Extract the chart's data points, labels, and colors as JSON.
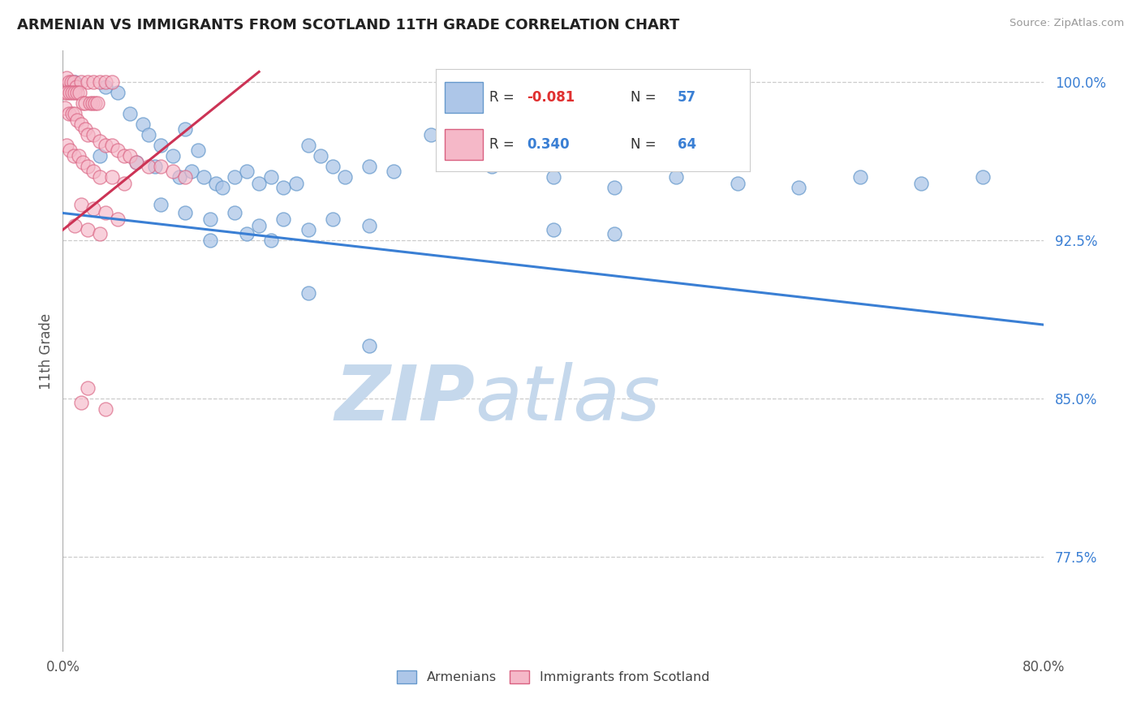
{
  "title": "ARMENIAN VS IMMIGRANTS FROM SCOTLAND 11TH GRADE CORRELATION CHART",
  "source": "Source: ZipAtlas.com",
  "ylabel_label": "11th Grade",
  "legend_blue_r_label": "R = ",
  "legend_blue_r_val": "-0.081",
  "legend_blue_n_label": "N = ",
  "legend_blue_n_val": "57",
  "legend_pink_r_label": "R = ",
  "legend_pink_r_val": "0.340",
  "legend_pink_n_label": "N = ",
  "legend_pink_n_val": "64",
  "legend_label_blue": "Armenians",
  "legend_label_pink": "Immigrants from Scotland",
  "blue_color": "#adc6e8",
  "blue_edge_color": "#6699cc",
  "pink_color": "#f5b8c8",
  "pink_edge_color": "#d96080",
  "trendline_blue_color": "#3a7fd4",
  "trendline_pink_color": "#cc3355",
  "watermark_zip_color": "#c5d8ec",
  "watermark_atlas_color": "#c5d8ec",
  "background_color": "#ffffff",
  "xmin": 0.0,
  "xmax": 80.0,
  "ymin": 73.0,
  "ymax": 101.5,
  "yticks": [
    77.5,
    85.0,
    92.5,
    100.0
  ],
  "ytick_labels": [
    "77.5%",
    "85.0%",
    "92.5%",
    "100.0%"
  ],
  "xticks": [
    0.0,
    80.0
  ],
  "xtick_labels": [
    "0.0%",
    "80.0%"
  ],
  "trendline_blue": [
    0.0,
    93.8,
    80.0,
    88.5
  ],
  "trendline_pink": [
    0.0,
    93.0,
    16.0,
    100.5
  ],
  "blue_dots": [
    [
      1.0,
      100.0
    ],
    [
      3.5,
      99.8
    ],
    [
      4.5,
      99.5
    ],
    [
      5.5,
      98.5
    ],
    [
      6.5,
      98.0
    ],
    [
      7.0,
      97.5
    ],
    [
      8.0,
      97.0
    ],
    [
      9.0,
      96.5
    ],
    [
      10.0,
      97.8
    ],
    [
      11.0,
      96.8
    ],
    [
      3.0,
      96.5
    ],
    [
      6.0,
      96.2
    ],
    [
      7.5,
      96.0
    ],
    [
      9.5,
      95.5
    ],
    [
      10.5,
      95.8
    ],
    [
      11.5,
      95.5
    ],
    [
      12.5,
      95.2
    ],
    [
      13.0,
      95.0
    ],
    [
      14.0,
      95.5
    ],
    [
      15.0,
      95.8
    ],
    [
      16.0,
      95.2
    ],
    [
      17.0,
      95.5
    ],
    [
      18.0,
      95.0
    ],
    [
      19.0,
      95.2
    ],
    [
      20.0,
      97.0
    ],
    [
      21.0,
      96.5
    ],
    [
      22.0,
      96.0
    ],
    [
      23.0,
      95.5
    ],
    [
      25.0,
      96.0
    ],
    [
      27.0,
      95.8
    ],
    [
      30.0,
      97.5
    ],
    [
      33.0,
      96.5
    ],
    [
      35.0,
      96.0
    ],
    [
      40.0,
      95.5
    ],
    [
      45.0,
      95.0
    ],
    [
      50.0,
      95.5
    ],
    [
      55.0,
      95.2
    ],
    [
      60.0,
      95.0
    ],
    [
      65.0,
      95.5
    ],
    [
      70.0,
      95.2
    ],
    [
      75.0,
      95.5
    ],
    [
      8.0,
      94.2
    ],
    [
      10.0,
      93.8
    ],
    [
      12.0,
      93.5
    ],
    [
      14.0,
      93.8
    ],
    [
      16.0,
      93.2
    ],
    [
      18.0,
      93.5
    ],
    [
      20.0,
      93.0
    ],
    [
      22.0,
      93.5
    ],
    [
      25.0,
      93.2
    ],
    [
      12.0,
      92.5
    ],
    [
      15.0,
      92.8
    ],
    [
      17.0,
      92.5
    ],
    [
      40.0,
      93.0
    ],
    [
      45.0,
      92.8
    ],
    [
      20.0,
      90.0
    ],
    [
      25.0,
      87.5
    ]
  ],
  "pink_dots": [
    [
      0.3,
      100.2
    ],
    [
      0.5,
      100.0
    ],
    [
      0.7,
      100.0
    ],
    [
      0.9,
      100.0
    ],
    [
      1.1,
      99.8
    ],
    [
      1.5,
      100.0
    ],
    [
      2.0,
      100.0
    ],
    [
      2.5,
      100.0
    ],
    [
      3.0,
      100.0
    ],
    [
      3.5,
      100.0
    ],
    [
      4.0,
      100.0
    ],
    [
      0.2,
      99.5
    ],
    [
      0.4,
      99.5
    ],
    [
      0.6,
      99.5
    ],
    [
      0.8,
      99.5
    ],
    [
      1.0,
      99.5
    ],
    [
      1.2,
      99.5
    ],
    [
      1.4,
      99.5
    ],
    [
      1.6,
      99.0
    ],
    [
      1.8,
      99.0
    ],
    [
      2.2,
      99.0
    ],
    [
      2.4,
      99.0
    ],
    [
      2.6,
      99.0
    ],
    [
      2.8,
      99.0
    ],
    [
      0.2,
      98.8
    ],
    [
      0.5,
      98.5
    ],
    [
      0.8,
      98.5
    ],
    [
      1.0,
      98.5
    ],
    [
      1.2,
      98.2
    ],
    [
      1.5,
      98.0
    ],
    [
      1.8,
      97.8
    ],
    [
      2.0,
      97.5
    ],
    [
      2.5,
      97.5
    ],
    [
      3.0,
      97.2
    ],
    [
      3.5,
      97.0
    ],
    [
      4.0,
      97.0
    ],
    [
      4.5,
      96.8
    ],
    [
      5.0,
      96.5
    ],
    [
      5.5,
      96.5
    ],
    [
      6.0,
      96.2
    ],
    [
      7.0,
      96.0
    ],
    [
      8.0,
      96.0
    ],
    [
      9.0,
      95.8
    ],
    [
      10.0,
      95.5
    ],
    [
      0.3,
      97.0
    ],
    [
      0.6,
      96.8
    ],
    [
      0.9,
      96.5
    ],
    [
      1.3,
      96.5
    ],
    [
      1.6,
      96.2
    ],
    [
      2.0,
      96.0
    ],
    [
      2.5,
      95.8
    ],
    [
      3.0,
      95.5
    ],
    [
      4.0,
      95.5
    ],
    [
      5.0,
      95.2
    ],
    [
      1.5,
      94.2
    ],
    [
      2.5,
      94.0
    ],
    [
      3.5,
      93.8
    ],
    [
      4.5,
      93.5
    ],
    [
      1.0,
      93.2
    ],
    [
      2.0,
      93.0
    ],
    [
      3.0,
      92.8
    ],
    [
      2.0,
      85.5
    ],
    [
      1.5,
      84.8
    ],
    [
      3.5,
      84.5
    ]
  ]
}
